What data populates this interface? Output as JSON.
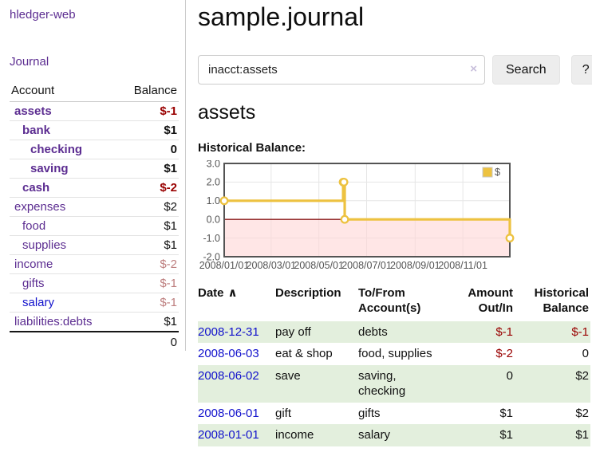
{
  "app": {
    "brand": "hledger-web",
    "nav": {
      "journal": "Journal"
    }
  },
  "sidebar": {
    "account_header": "Account",
    "balance_header": "Balance",
    "accounts": [
      {
        "name": "assets",
        "balance": "$-1"
      },
      {
        "name": "bank",
        "balance": "$1"
      },
      {
        "name": "checking",
        "balance": "0"
      },
      {
        "name": "saving",
        "balance": "$1"
      },
      {
        "name": "cash",
        "balance": "$-2"
      },
      {
        "name": "expenses",
        "balance": "$2"
      },
      {
        "name": "food",
        "balance": "$1"
      },
      {
        "name": "supplies",
        "balance": "$1"
      },
      {
        "name": "income",
        "balance": "$-2"
      },
      {
        "name": "gifts",
        "balance": "$-1"
      },
      {
        "name": "salary",
        "balance": "$-1"
      },
      {
        "name": "liabilities:debts",
        "balance": "$1"
      }
    ],
    "total": "0"
  },
  "header": {
    "title": "sample.journal"
  },
  "search": {
    "value": "inacct:assets",
    "clear_icon": "×",
    "button_label": "Search",
    "help_label": "?"
  },
  "account_page": {
    "title": "assets",
    "chart_label": "Historical Balance:"
  },
  "chart_data": {
    "type": "line",
    "step": true,
    "title": "Historical Balance:",
    "xlim": [
      "2008-01-01",
      "2008-12-31"
    ],
    "ylim": [
      -2,
      3
    ],
    "yticks": [
      {
        "v": 3,
        "label": "3.0"
      },
      {
        "v": 2,
        "label": "2.0"
      },
      {
        "v": 1,
        "label": "1.0"
      },
      {
        "v": 0,
        "label": "0.0"
      },
      {
        "v": -1,
        "label": "-1.0"
      },
      {
        "v": -2,
        "label": "-2.0"
      }
    ],
    "xticks": [
      {
        "date": "2008-01-01",
        "label": "2008/01/01"
      },
      {
        "date": "2008-03-01",
        "label": "2008/03/01"
      },
      {
        "date": "2008-05-01",
        "label": "2008/05/01"
      },
      {
        "date": "2008-07-01",
        "label": "2008/07/01"
      },
      {
        "date": "2008-09-01",
        "label": "2008/09/01"
      },
      {
        "date": "2008-11-01",
        "label": "2008/11/01"
      }
    ],
    "legend": [
      {
        "label": "$",
        "color": "#edc240"
      }
    ],
    "series": [
      {
        "name": "$",
        "points": [
          [
            "2008-01-01",
            1
          ],
          [
            "2008-06-01",
            2
          ],
          [
            "2008-06-02",
            2
          ],
          [
            "2008-06-03",
            0
          ],
          [
            "2008-12-31",
            -1
          ]
        ]
      }
    ],
    "colors": {
      "series": "#edc240",
      "zero_line": "#8b1a1a",
      "negative_region": "#ffd6d6",
      "grid": "#e6e6e6",
      "border": "#545454",
      "tick_text": "#545454"
    },
    "grid": true,
    "legend_position": "top-right"
  },
  "register": {
    "columns": [
      "Date",
      "Description",
      "To/From Account(s)",
      "Amount Out/In",
      "Historical Balance"
    ],
    "sort_arrow": "∧",
    "rows": [
      {
        "date": "2008-12-31",
        "description": "pay off",
        "accounts": "debts",
        "amount": "$-1",
        "balance": "$-1"
      },
      {
        "date": "2008-06-03",
        "description": "eat & shop",
        "accounts": "food, supplies",
        "amount": "$-2",
        "balance": "0"
      },
      {
        "date": "2008-06-02",
        "description": "save",
        "accounts": "saving, checking",
        "amount": "0",
        "balance": "$2"
      },
      {
        "date": "2008-06-01",
        "description": "gift",
        "accounts": "gifts",
        "amount": "$1",
        "balance": "$2"
      },
      {
        "date": "2008-01-01",
        "description": "income",
        "accounts": "salary",
        "amount": "$1",
        "balance": "$1"
      }
    ]
  }
}
